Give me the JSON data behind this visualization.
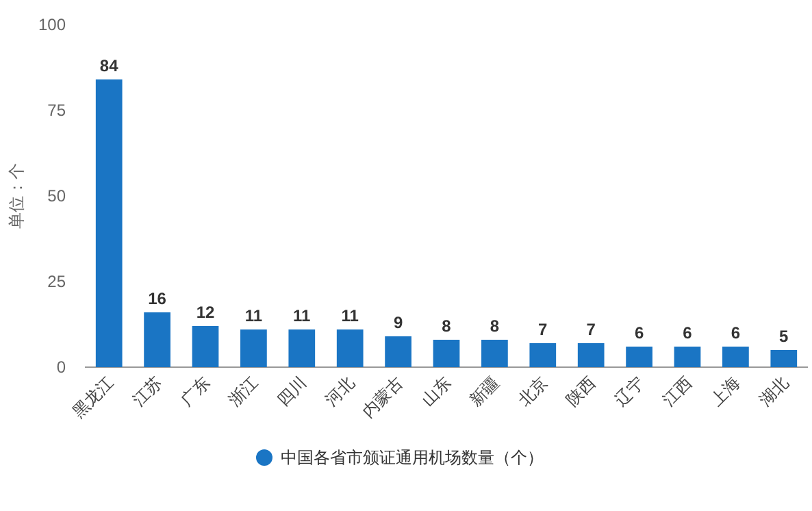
{
  "chart_data": {
    "type": "bar",
    "ylabel": "单位：个",
    "categories": [
      "黑龙江",
      "江苏",
      "广东",
      "浙江",
      "四川",
      "河北",
      "内蒙古",
      "山东",
      "新疆",
      "北京",
      "陕西",
      "辽宁",
      "江西",
      "上海",
      "湖北"
    ],
    "series": [
      {
        "name": "中国各省市颁证通用机场数量（个）",
        "color": "#1a75c4",
        "values": [
          84,
          16,
          12,
          11,
          11,
          11,
          9,
          8,
          8,
          7,
          7,
          6,
          6,
          6,
          5
        ]
      }
    ],
    "ylim": [
      0,
      100
    ],
    "yticks": [
      0,
      25,
      50,
      75,
      100
    ],
    "grid": false,
    "data_labels": true,
    "legend": "bottom"
  }
}
